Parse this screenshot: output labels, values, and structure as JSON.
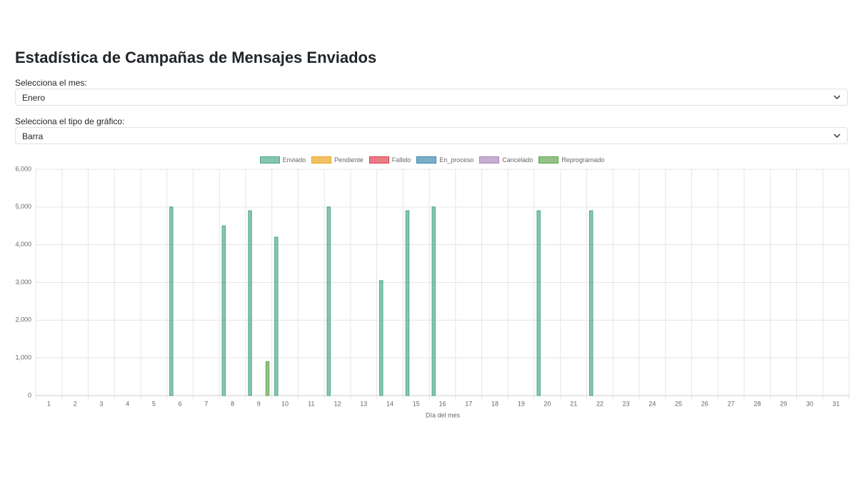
{
  "header": {
    "title": "Estadística de Campañas de Mensajes Enviados"
  },
  "filters": [
    {
      "label": "Selecciona el mes:",
      "value": "Enero"
    },
    {
      "label": "Selecciona el tipo de gráfico:",
      "value": "Barra"
    }
  ],
  "chart_data": {
    "type": "bar",
    "x_label": "Día del mes",
    "categories": [
      "1",
      "2",
      "3",
      "4",
      "5",
      "6",
      "7",
      "8",
      "9",
      "10",
      "11",
      "12",
      "13",
      "14",
      "15",
      "16",
      "17",
      "18",
      "19",
      "20",
      "21",
      "22",
      "23",
      "24",
      "25",
      "26",
      "27",
      "28",
      "29",
      "30",
      "31"
    ],
    "series": [
      {
        "name": "Enviado",
        "color": "#4aa882",
        "values": [
          0,
          0,
          0,
          0,
          0,
          5000,
          0,
          4500,
          4900,
          4200,
          0,
          5000,
          0,
          3050,
          4900,
          5000,
          0,
          0,
          0,
          4900,
          0,
          4900,
          0,
          0,
          0,
          0,
          0,
          0,
          0,
          0,
          0
        ]
      },
      {
        "name": "Pendiente",
        "color": "#e8a317",
        "values": [
          0,
          0,
          0,
          0,
          0,
          0,
          0,
          0,
          0,
          0,
          0,
          0,
          0,
          0,
          0,
          0,
          0,
          0,
          0,
          0,
          0,
          0,
          0,
          0,
          0,
          0,
          0,
          0,
          0,
          0,
          0
        ]
      },
      {
        "name": "Fallido",
        "color": "#e03a48",
        "values": [
          0,
          0,
          0,
          0,
          0,
          0,
          0,
          0,
          0,
          0,
          0,
          0,
          0,
          0,
          0,
          0,
          0,
          0,
          0,
          0,
          0,
          0,
          0,
          0,
          0,
          0,
          0,
          0,
          0,
          0,
          0
        ]
      },
      {
        "name": "En_proceso",
        "color": "#3a86a8",
        "values": [
          0,
          0,
          0,
          0,
          0,
          0,
          0,
          0,
          0,
          0,
          0,
          0,
          0,
          0,
          0,
          0,
          0,
          0,
          0,
          0,
          0,
          0,
          0,
          0,
          0,
          0,
          0,
          0,
          0,
          0,
          0
        ]
      },
      {
        "name": "Cancelado",
        "color": "#a987b8",
        "values": [
          0,
          0,
          0,
          0,
          0,
          0,
          0,
          0,
          0,
          0,
          0,
          0,
          0,
          0,
          0,
          0,
          0,
          0,
          0,
          0,
          0,
          0,
          0,
          0,
          0,
          0,
          0,
          0,
          0,
          0,
          0
        ]
      },
      {
        "name": "Reprogramado",
        "color": "#5fa24c",
        "values": [
          0,
          0,
          0,
          0,
          0,
          0,
          0,
          0,
          900,
          0,
          0,
          0,
          0,
          0,
          0,
          0,
          0,
          0,
          0,
          0,
          0,
          0,
          0,
          0,
          0,
          0,
          0,
          0,
          0,
          0,
          0
        ]
      }
    ],
    "ylim": [
      0,
      6000
    ],
    "yticks": [
      0,
      {
        "value": 1000,
        "label": "1,000"
      },
      {
        "value": 2000,
        "label": "2,000"
      },
      {
        "value": 3000,
        "label": "3,000"
      },
      {
        "value": 4000,
        "label": "4,000"
      },
      {
        "value": 5000,
        "label": "5,000"
      },
      {
        "value": 6000,
        "label": "6,000"
      }
    ],
    "grid": true,
    "legend": "top"
  }
}
